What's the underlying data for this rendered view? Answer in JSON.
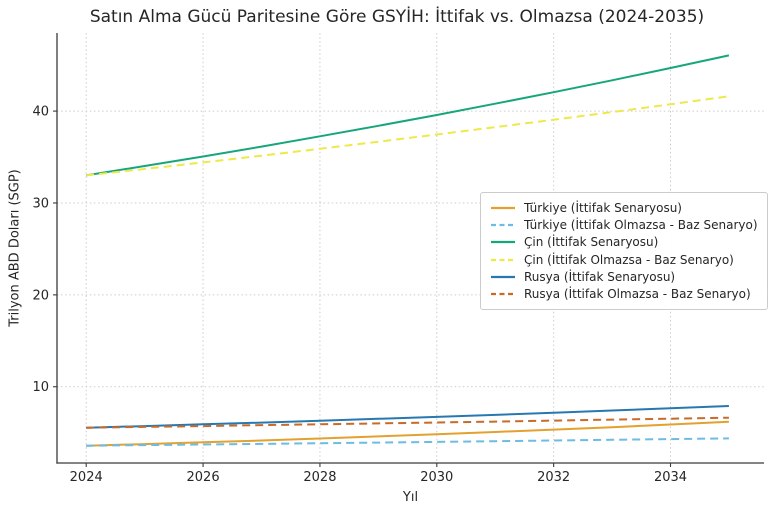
{
  "chart_data": {
    "type": "line",
    "title": "Satın Alma Gücü Paritesine Göre GSYİH: İttifak vs. Olmazsa (2024-2035)",
    "xlabel": "Yıl",
    "ylabel": "Trilyon ABD Doları (SGP)",
    "x": [
      2024,
      2025,
      2026,
      2027,
      2028,
      2029,
      2030,
      2031,
      2032,
      2033,
      2034,
      2035
    ],
    "series": [
      {
        "id": "turkiye-ittifak",
        "name": "Türkiye (İttifak Senaryosu)",
        "color": "#E3A12F",
        "style": "solid",
        "values": [
          3.58,
          3.76,
          3.95,
          4.15,
          4.37,
          4.59,
          4.82,
          5.07,
          5.33,
          5.6,
          5.89,
          6.19
        ]
      },
      {
        "id": "turkiye-baz",
        "name": "Türkiye (İttifak Olmazsa - Baz Senaryo)",
        "color": "#6CBCE4",
        "style": "dashed",
        "values": [
          3.58,
          3.65,
          3.71,
          3.78,
          3.85,
          3.92,
          4.0,
          4.07,
          4.15,
          4.22,
          4.3,
          4.38
        ]
      },
      {
        "id": "cin-ittifak",
        "name": "Çin (İttifak Senaryosu)",
        "color": "#17A67B",
        "style": "solid",
        "values": [
          33.0,
          34.02,
          35.06,
          36.14,
          37.26,
          38.4,
          39.58,
          40.8,
          42.06,
          43.35,
          44.69,
          46.06
        ]
      },
      {
        "id": "cin-baz",
        "name": "Çin (İttifak Olmazsa - Baz Senaryo)",
        "color": "#EDE94A",
        "style": "dashed",
        "values": [
          33.0,
          33.7,
          34.42,
          35.15,
          35.9,
          36.67,
          37.45,
          38.25,
          39.06,
          39.89,
          40.74,
          41.61
        ]
      },
      {
        "id": "rusya-ittifak",
        "name": "Rusya (İttifak Senaryosu)",
        "color": "#2878B0",
        "style": "solid",
        "values": [
          5.54,
          5.72,
          5.91,
          6.1,
          6.3,
          6.51,
          6.72,
          6.94,
          7.17,
          7.41,
          7.65,
          7.9
        ]
      },
      {
        "id": "rusya-baz",
        "name": "Rusya (İttifak Olmazsa - Baz Senaryo)",
        "color": "#C66B29",
        "style": "dashed",
        "values": [
          5.54,
          5.63,
          5.72,
          5.82,
          5.91,
          6.01,
          6.11,
          6.21,
          6.31,
          6.42,
          6.52,
          6.63
        ]
      }
    ],
    "x_ticks": [
      2024,
      2026,
      2028,
      2030,
      2032,
      2034
    ],
    "y_ticks": [
      10,
      20,
      30,
      40
    ],
    "xlim": [
      2023.5,
      2035.6
    ],
    "ylim": [
      1.7,
      48.5
    ],
    "grid": true,
    "legend_position": "center-right"
  }
}
